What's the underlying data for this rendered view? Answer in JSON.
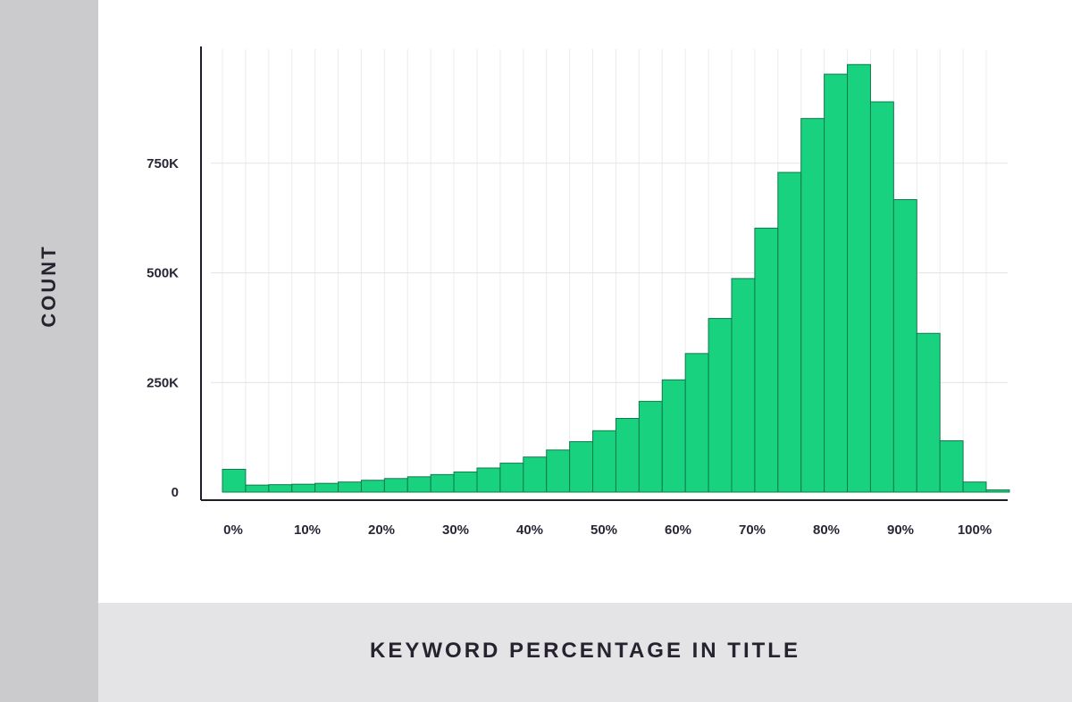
{
  "chart_data": {
    "type": "bar",
    "title": "",
    "xlabel": "KEYWORD PERCENTAGE IN TITLE",
    "ylabel": "COUNT",
    "ylim": [
      0,
      1000000
    ],
    "xlim": [
      0,
      100
    ],
    "bin_width": 3.0303,
    "x_tick_values": [
      0,
      10,
      20,
      30,
      40,
      50,
      60,
      70,
      80,
      90,
      100
    ],
    "x_tick_labels": [
      "0%",
      "10%",
      "20%",
      "30%",
      "40%",
      "50%",
      "60%",
      "70%",
      "80%",
      "90%",
      "100%"
    ],
    "y_tick_values": [
      0,
      250000,
      500000,
      750000
    ],
    "y_tick_labels": [
      "0",
      "250K",
      "500K",
      "750K"
    ],
    "grid": true,
    "bar_color": "#19d27f",
    "bar_edge_color": "#0f7a4b",
    "values": [
      52000,
      16000,
      17000,
      18000,
      20000,
      23000,
      27000,
      31000,
      35000,
      40000,
      46000,
      55000,
      66000,
      80000,
      96000,
      115000,
      140000,
      168000,
      207000,
      256000,
      316000,
      396000,
      487000,
      602000,
      729000,
      852000,
      953000,
      975000,
      890000,
      667000,
      362000,
      117000,
      23000,
      5000
    ]
  }
}
